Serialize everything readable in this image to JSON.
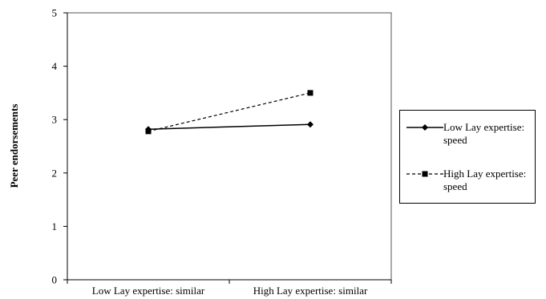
{
  "chart_data": {
    "type": "line",
    "title": "",
    "xlabel": "",
    "ylabel": "Peer endorsements",
    "categories": [
      "Low Lay expertise: similar",
      "High Lay expertise: similar"
    ],
    "ylim": [
      0,
      5
    ],
    "yticks": [
      "0",
      "1",
      "2",
      "3",
      "4",
      "5"
    ],
    "grid": false,
    "legend_position": "right",
    "series": [
      {
        "name": "Low Lay expertise: speed",
        "values": [
          2.82,
          2.91
        ],
        "marker": "diamond",
        "line_style": "solid",
        "color": "#000000"
      },
      {
        "name": "High Lay expertise: speed",
        "values": [
          2.78,
          3.5
        ],
        "marker": "square",
        "line_style": "dashed",
        "color": "#000000"
      }
    ]
  }
}
